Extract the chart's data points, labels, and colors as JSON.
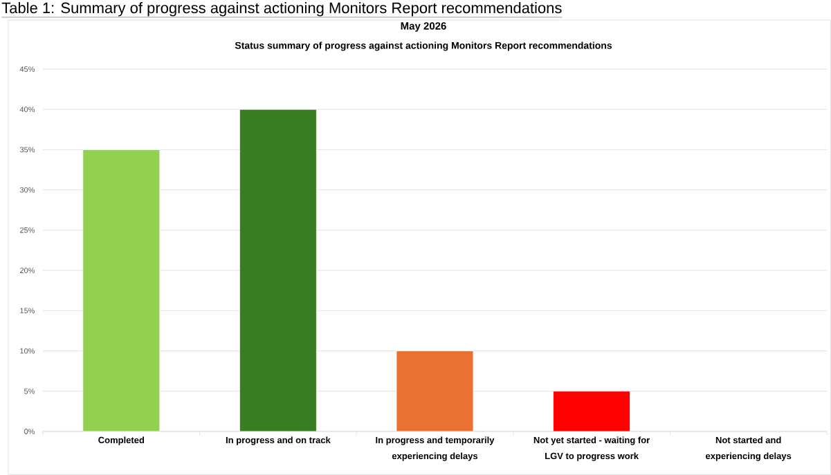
{
  "chart_data": {
    "type": "bar",
    "title": "May 2026",
    "subtitle": "Status summary of progress against actioning Monitors Report recommendations",
    "annotations": [
      "Table 1: Summary of progress against actioning Monitors Report recommendations"
    ],
    "categories": [
      "Completed",
      "In progress and on track",
      "In progress and temporarily experiencing delays",
      "Not yet started - waiting for LGV to progress work",
      "Not started and experiencing delays"
    ],
    "values": [
      35,
      40,
      10,
      5,
      0
    ],
    "colors": [
      "#92d050",
      "#3b7d23",
      "#e97132",
      "#ff0000",
      null
    ],
    "ylim": [
      0,
      45
    ],
    "yticks": [
      {
        "value": 0,
        "label": "0%"
      },
      {
        "value": 5,
        "label": "5%"
      },
      {
        "value": 10,
        "label": "10%"
      },
      {
        "value": 15,
        "label": "15%"
      },
      {
        "value": 20,
        "label": "20%"
      },
      {
        "value": 25,
        "label": "25%"
      },
      {
        "value": 30,
        "label": "30%"
      },
      {
        "value": 35,
        "label": "35%"
      },
      {
        "value": 40,
        "label": "40%"
      },
      {
        "value": 45,
        "label": "45%"
      }
    ],
    "grid": "y"
  }
}
